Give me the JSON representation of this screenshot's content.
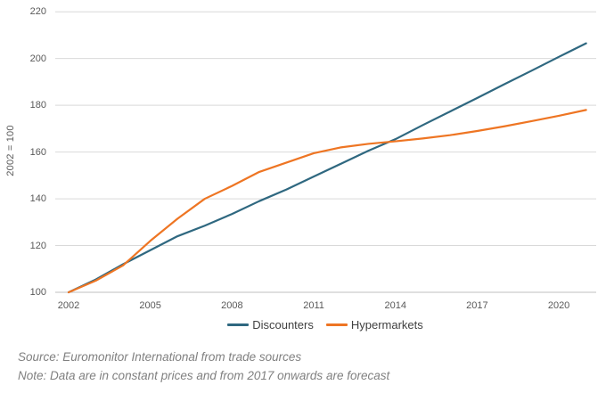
{
  "figure": {
    "source": "Source: Euromonitor International from trade sources",
    "note": "Note: Data are in constant prices and from 2017 onwards are forecast",
    "colors": {
      "discounters": "#2F6880",
      "hypermarkets": "#EE7523",
      "gridline": "#D9D9D9",
      "axis_line": "#BFBFBF",
      "tick_text": "#595959",
      "legend_text": "#404040",
      "source_text": "#808080"
    }
  },
  "chart_data": {
    "type": "line",
    "title": "",
    "xlabel": "",
    "ylabel": "2002 = 100",
    "x": [
      2002,
      2003,
      2004,
      2005,
      2006,
      2007,
      2008,
      2009,
      2010,
      2011,
      2012,
      2013,
      2014,
      2015,
      2016,
      2017,
      2018,
      2019,
      2020,
      2021
    ],
    "series": [
      {
        "name": "Discounters",
        "color": "#2F6880",
        "values": [
          100,
          105.5,
          112,
          118,
          124,
          128.5,
          133.5,
          139,
          144,
          149.5,
          155,
          160.5,
          165.5,
          171.5,
          177.3,
          183.1,
          189,
          194.8,
          200.7,
          206.5
        ]
      },
      {
        "name": "Hypermarkets",
        "color": "#EE7523",
        "values": [
          100,
          105,
          111.5,
          122,
          131.5,
          140,
          145.5,
          151.5,
          155.5,
          159.5,
          162,
          163.5,
          164.6,
          165.8,
          167.2,
          169,
          171,
          173.2,
          175.5,
          178
        ]
      }
    ],
    "ylim": [
      100,
      220
    ],
    "yticks": [
      100,
      120,
      140,
      160,
      180,
      200,
      220
    ],
    "xticks": [
      2002,
      2005,
      2008,
      2011,
      2014,
      2017,
      2020
    ],
    "grid": "horizontal",
    "legend_position": "bottom",
    "notes": "solid lines throughout; values from 2017 onwards are forecast"
  }
}
